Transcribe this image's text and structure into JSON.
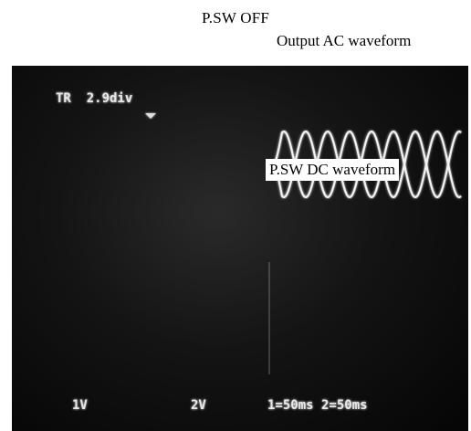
{
  "title": "P.SW OFF",
  "captions": {
    "ac": "Output AC waveform",
    "dc": "P.SW DC waveform"
  },
  "scope": {
    "trigger_readout": "TR  2.9div",
    "ch1_scale": "1V",
    "ch2_scale": "2V",
    "time_scale": "1=50ms 2=50ms"
  },
  "colors": {
    "trace": "#f2f2f2",
    "screen": "#141414"
  }
}
